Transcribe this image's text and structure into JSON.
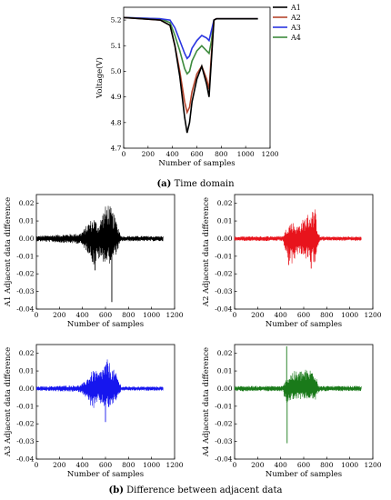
{
  "captions": {
    "a_letter": "(a)",
    "a_text": " Time domain",
    "b_letter": "(b)",
    "b_text": " Difference between adjacent data"
  },
  "colors": {
    "A1": "#000000",
    "A2": "#b5462e",
    "A3": "#2a35e0",
    "A4": "#3d8a3d",
    "diff_A1": "#000000",
    "diff_A2": "#e8141c",
    "diff_A3": "#1616ee",
    "diff_A4": "#1a7a1a",
    "background_glitch": "#ff66ff"
  },
  "chart_data": [
    {
      "id": "top",
      "type": "line",
      "title": "",
      "xlabel": "Number of samples",
      "ylabel": "Voltage(V)",
      "xlim": [
        0,
        1200
      ],
      "ylim": [
        4.7,
        5.25
      ],
      "xticks": [
        "0",
        "200",
        "400",
        "600",
        "800",
        "1000",
        "1200"
      ],
      "yticks": [
        "4.7",
        "4.8",
        "4.9",
        "5.0",
        "5.1",
        "5.2"
      ],
      "legend_position": "top-right",
      "series": [
        {
          "name": "A1",
          "x": [
            0,
            300,
            380,
            420,
            460,
            500,
            520,
            540,
            560,
            600,
            640,
            680,
            700,
            720,
            740,
            760,
            1100
          ],
          "y": [
            5.21,
            5.2,
            5.18,
            5.1,
            4.98,
            4.82,
            4.76,
            4.8,
            4.88,
            4.97,
            5.02,
            4.95,
            4.9,
            5.05,
            5.2,
            5.205,
            5.205
          ]
        },
        {
          "name": "A2",
          "x": [
            0,
            300,
            380,
            420,
            460,
            500,
            520,
            540,
            560,
            600,
            640,
            680,
            700,
            720,
            740,
            760,
            1100
          ],
          "y": [
            5.21,
            5.2,
            5.18,
            5.1,
            5.0,
            4.88,
            4.84,
            4.86,
            4.92,
            4.99,
            5.02,
            4.97,
            4.93,
            5.07,
            5.2,
            5.205,
            5.205
          ]
        },
        {
          "name": "A3",
          "x": [
            0,
            300,
            380,
            420,
            460,
            500,
            520,
            540,
            560,
            600,
            640,
            680,
            700,
            720,
            740,
            760,
            1100
          ],
          "y": [
            5.21,
            5.205,
            5.2,
            5.17,
            5.12,
            5.07,
            5.05,
            5.06,
            5.09,
            5.12,
            5.14,
            5.13,
            5.12,
            5.16,
            5.2,
            5.205,
            5.205
          ]
        },
        {
          "name": "A4",
          "x": [
            0,
            300,
            380,
            420,
            460,
            500,
            520,
            540,
            560,
            600,
            640,
            680,
            700,
            720,
            740,
            760,
            1100
          ],
          "y": [
            5.21,
            5.205,
            5.19,
            5.14,
            5.08,
            5.01,
            4.99,
            5.0,
            5.04,
            5.08,
            5.1,
            5.08,
            5.07,
            5.12,
            5.2,
            5.205,
            5.205
          ]
        }
      ]
    },
    {
      "id": "A1",
      "type": "line",
      "xlabel": "Number of samples",
      "ylabel": "A1 Adjacent data difference",
      "xlim": [
        0,
        1200
      ],
      "ylim": [
        -0.04,
        0.025
      ],
      "xticks": [
        "0",
        "200",
        "400",
        "600",
        "800",
        "1000",
        "1200"
      ],
      "yticks": [
        "-0.04",
        "-0.03",
        "-0.02",
        "-0.01",
        "0.00",
        "0.01",
        "0.02"
      ],
      "x_range": [
        0,
        1100
      ],
      "baseline_amplitude": 0.0015,
      "envelope_x": [
        0,
        380,
        420,
        460,
        500,
        540,
        580,
        620,
        660,
        700,
        720,
        740,
        1100
      ],
      "envelope_upper": [
        0.0015,
        0.003,
        0.006,
        0.01,
        0.012,
        0.008,
        0.016,
        0.021,
        0.016,
        0.01,
        0.005,
        0.0015,
        0.0015
      ],
      "envelope_lower": [
        -0.0015,
        -0.003,
        -0.006,
        -0.009,
        -0.016,
        -0.012,
        -0.013,
        -0.015,
        -0.013,
        -0.008,
        -0.004,
        -0.0015,
        -0.0015
      ],
      "spikes": [
        {
          "x": 655,
          "y": -0.036
        },
        {
          "x": 510,
          "y": -0.018
        }
      ]
    },
    {
      "id": "A2",
      "type": "line",
      "xlabel": "Number of samples",
      "ylabel": "A2 Adjacent data difference",
      "xlim": [
        0,
        1200
      ],
      "ylim": [
        -0.04,
        0.025
      ],
      "xticks": [
        "0",
        "200",
        "400",
        "600",
        "800",
        "1000",
        "1200"
      ],
      "yticks": [
        "-0.04",
        "-0.03",
        "-0.02",
        "-0.01",
        "0.00",
        "0.01",
        "0.02"
      ],
      "x_range": [
        0,
        1100
      ],
      "baseline_amplitude": 0.0012,
      "envelope_x": [
        0,
        420,
        460,
        500,
        540,
        580,
        620,
        660,
        700,
        720,
        740,
        1100
      ],
      "envelope_upper": [
        0.0012,
        0.0015,
        0.008,
        0.01,
        0.007,
        0.01,
        0.013,
        0.016,
        0.017,
        0.006,
        0.0012,
        0.0012
      ],
      "envelope_lower": [
        -0.0012,
        -0.0015,
        -0.013,
        -0.015,
        -0.009,
        -0.009,
        -0.012,
        -0.016,
        -0.013,
        -0.005,
        -0.0012,
        -0.0012
      ],
      "spikes": [
        {
          "x": 470,
          "y": -0.015
        },
        {
          "x": 665,
          "y": -0.017
        }
      ]
    },
    {
      "id": "A3",
      "type": "line",
      "xlabel": "Number of samples",
      "ylabel": "A3 Adjacent data difference",
      "xlim": [
        0,
        1200
      ],
      "ylim": [
        -0.04,
        0.025
      ],
      "xticks": [
        "0",
        "200",
        "400",
        "600",
        "800",
        "1000",
        "1200"
      ],
      "yticks": [
        "-0.04",
        "-0.03",
        "-0.02",
        "-0.01",
        "0.00",
        "0.01",
        "0.02"
      ],
      "x_range": [
        0,
        1100
      ],
      "baseline_amplitude": 0.0012,
      "envelope_x": [
        0,
        380,
        420,
        460,
        500,
        540,
        580,
        620,
        660,
        700,
        720,
        740,
        1100
      ],
      "envelope_upper": [
        0.0012,
        0.002,
        0.004,
        0.008,
        0.011,
        0.009,
        0.013,
        0.017,
        0.012,
        0.008,
        0.004,
        0.0012,
        0.0012
      ],
      "envelope_lower": [
        -0.0012,
        -0.002,
        -0.004,
        -0.009,
        -0.012,
        -0.008,
        -0.01,
        -0.012,
        -0.01,
        -0.006,
        -0.003,
        -0.0012,
        -0.0012
      ],
      "spikes": [
        {
          "x": 600,
          "y": -0.019
        }
      ]
    },
    {
      "id": "A4",
      "type": "line",
      "xlabel": "Number of samples",
      "ylabel": "A4 Adjacent data difference",
      "xlim": [
        0,
        1200
      ],
      "ylim": [
        -0.04,
        0.025
      ],
      "xticks": [
        "0",
        "200",
        "400",
        "600",
        "800",
        "1000",
        "1200"
      ],
      "yticks": [
        "-0.04",
        "-0.03",
        "-0.02",
        "-0.01",
        "0.00",
        "0.01",
        "0.02"
      ],
      "x_range": [
        0,
        1100
      ],
      "baseline_amplitude": 0.0015,
      "envelope_x": [
        0,
        420,
        450,
        500,
        550,
        600,
        650,
        700,
        720,
        740,
        1100
      ],
      "envelope_upper": [
        0.0015,
        0.0015,
        0.006,
        0.01,
        0.01,
        0.011,
        0.011,
        0.012,
        0.004,
        0.0015,
        0.0015
      ],
      "envelope_lower": [
        -0.0015,
        -0.0015,
        -0.01,
        -0.006,
        -0.006,
        -0.006,
        -0.006,
        -0.007,
        -0.003,
        -0.0015,
        -0.0015
      ],
      "spikes": [
        {
          "x": 452,
          "y": 0.024
        },
        {
          "x": 456,
          "y": -0.031
        }
      ]
    }
  ]
}
